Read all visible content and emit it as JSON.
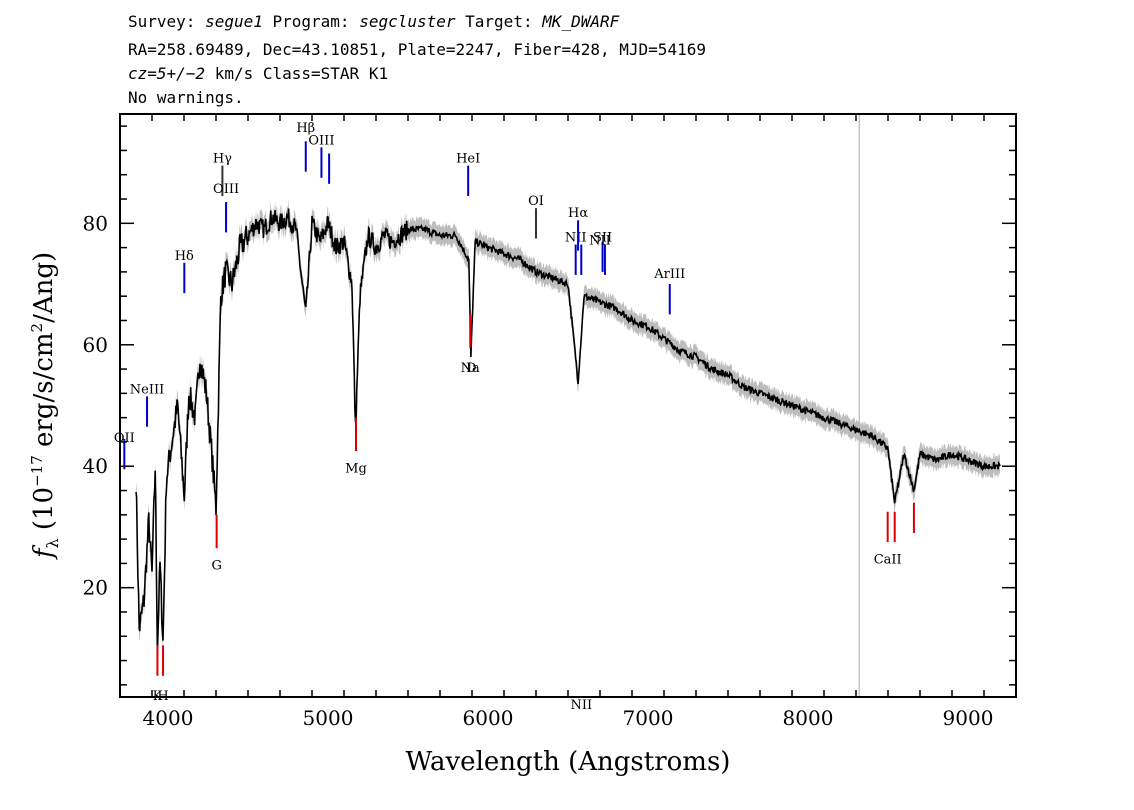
{
  "header": {
    "l1_survey_label": "Survey: ",
    "l1_survey": "segue1",
    "l1_program_label": " Program: ",
    "l1_program": "segcluster",
    "l1_target_label": " Target: ",
    "l1_target": "MK_DWARF",
    "l2": "RA=258.69489, Dec=43.10851, Plate=2247, Fiber=428, MJD=54169",
    "l3_cz": "cz=5+/−2",
    "l3_rest": " km/s Class=STAR K1",
    "l4": "No warnings."
  },
  "chart_data": {
    "type": "line",
    "xlabel": "Wavelength (Angstroms)",
    "ylabel_main": "f",
    "ylabel_sub": "λ",
    "ylabel_rest1": " (10",
    "ylabel_exp": "−17",
    "ylabel_rest2": " erg/s/cm",
    "ylabel_exp2": "2",
    "ylabel_rest3": "/Ang)",
    "xlim": [
      3700,
      9300
    ],
    "ylim": [
      2,
      98
    ],
    "x_ticks": [
      4000,
      5000,
      6000,
      7000,
      8000,
      9000
    ],
    "x_tick_labels": [
      "4000",
      "5000",
      "6000",
      "7000",
      "8000",
      "9000"
    ],
    "y_ticks": [
      20,
      40,
      60,
      80
    ],
    "y_tick_labels": [
      "20",
      "40",
      "60",
      "80"
    ],
    "colors": {
      "flux": "#000000",
      "error": "#bdbdbd",
      "emission": "#0000cc",
      "absorption": "#dd0000",
      "marker": "#aaaaaa"
    },
    "vertical_marker_x": 8320,
    "spectrum": [
      [
        3800,
        38
      ],
      [
        3820,
        13
      ],
      [
        3850,
        18
      ],
      [
        3880,
        31
      ],
      [
        3900,
        22
      ],
      [
        3920,
        40
      ],
      [
        3934,
        10
      ],
      [
        3950,
        24
      ],
      [
        3969,
        11
      ],
      [
        3990,
        38
      ],
      [
        4030,
        45
      ],
      [
        4060,
        50
      ],
      [
        4102,
        35
      ],
      [
        4130,
        52
      ],
      [
        4170,
        48
      ],
      [
        4200,
        58
      ],
      [
        4240,
        52
      ],
      [
        4280,
        40
      ],
      [
        4300,
        33
      ],
      [
        4330,
        68
      ],
      [
        4360,
        72
      ],
      [
        4400,
        70
      ],
      [
        4450,
        76
      ],
      [
        4500,
        78
      ],
      [
        4550,
        80
      ],
      [
        4600,
        79
      ],
      [
        4650,
        81
      ],
      [
        4700,
        80
      ],
      [
        4750,
        81
      ],
      [
        4800,
        79
      ],
      [
        4861,
        65
      ],
      [
        4900,
        80
      ],
      [
        4950,
        77
      ],
      [
        5000,
        80
      ],
      [
        5050,
        76
      ],
      [
        5100,
        77
      ],
      [
        5150,
        70
      ],
      [
        5172,
        46
      ],
      [
        5200,
        68
      ],
      [
        5250,
        78
      ],
      [
        5300,
        76
      ],
      [
        5350,
        78
      ],
      [
        5400,
        77
      ],
      [
        5500,
        79
      ],
      [
        5600,
        79
      ],
      [
        5700,
        78
      ],
      [
        5800,
        78
      ],
      [
        5880,
        74
      ],
      [
        5893,
        58
      ],
      [
        5920,
        77
      ],
      [
        6000,
        76
      ],
      [
        6100,
        75
      ],
      [
        6200,
        74
      ],
      [
        6300,
        72
      ],
      [
        6400,
        71
      ],
      [
        6500,
        70
      ],
      [
        6563,
        54
      ],
      [
        6600,
        68
      ],
      [
        6700,
        67
      ],
      [
        6800,
        66
      ],
      [
        6900,
        64
      ],
      [
        7000,
        63
      ],
      [
        7100,
        61
      ],
      [
        7200,
        59
      ],
      [
        7300,
        58
      ],
      [
        7400,
        56
      ],
      [
        7500,
        55
      ],
      [
        7600,
        53
      ],
      [
        7700,
        52
      ],
      [
        7800,
        51
      ],
      [
        7900,
        50
      ],
      [
        8000,
        49
      ],
      [
        8100,
        48
      ],
      [
        8200,
        47
      ],
      [
        8300,
        46
      ],
      [
        8400,
        45
      ],
      [
        8498,
        43
      ],
      [
        8542,
        34
      ],
      [
        8600,
        42
      ],
      [
        8662,
        36
      ],
      [
        8700,
        42
      ],
      [
        8800,
        41
      ],
      [
        8900,
        42
      ],
      [
        9000,
        41
      ],
      [
        9100,
        40
      ],
      [
        9200,
        40
      ]
    ],
    "emission_lines": [
      {
        "label": "OII",
        "x": 3727,
        "y_label": 44,
        "y1": 39.5,
        "y2": 44.5,
        "color": "#0000cc"
      },
      {
        "label": "NeIII",
        "x": 3869,
        "y_label": 52,
        "y1": 46.5,
        "y2": 51.5,
        "color": "#0000cc"
      },
      {
        "label": "Hδ",
        "x": 4102,
        "y_label": 74,
        "y1": 68.5,
        "y2": 73.5,
        "color": "#0000cc"
      },
      {
        "label": "Hγ",
        "x": 4340,
        "y_label": 90,
        "y1": 84.5,
        "y2": 89.5,
        "color": "#333333"
      },
      {
        "label": "OIII",
        "x": 4363,
        "y_label": 85,
        "y1": 78.5,
        "y2": 83.5,
        "color": "#0000cc"
      },
      {
        "label": "Hβ",
        "x": 4861,
        "y_label": 95,
        "y1": 88.5,
        "y2": 93.5,
        "color": "#0000cc"
      },
      {
        "label": "OIII",
        "x": 4959,
        "y_label": 93,
        "y1": 87.5,
        "y2": 92.5,
        "color": "#0000cc"
      },
      {
        "label": "",
        "x": 5007,
        "y_label": 0,
        "y1": 86.5,
        "y2": 91.5,
        "color": "#0000cc"
      },
      {
        "label": "HeI",
        "x": 5876,
        "y_label": 90,
        "y1": 84.5,
        "y2": 89.5,
        "color": "#0000cc"
      },
      {
        "label": "OI",
        "x": 6300,
        "y_label": 83,
        "y1": 77.5,
        "y2": 82.5,
        "color": "#333333"
      },
      {
        "label": "NII",
        "x": 6548,
        "y_label": 77,
        "y1": 71.5,
        "y2": 76.5,
        "color": "#0000cc"
      },
      {
        "label": "Hα",
        "x": 6563,
        "y_label": 81,
        "y1": 75.5,
        "y2": 80.5,
        "color": "#0000cc"
      },
      {
        "label": "NII",
        "x": 6583,
        "y_label": 0,
        "y1": 71.5,
        "y2": 76.5,
        "color": "#0000cc"
      },
      {
        "label": "SII",
        "x": 6716,
        "y_label": 77,
        "y1": 72,
        "y2": 77,
        "color": "#0000cc"
      },
      {
        "label": "NII",
        "x": 6700,
        "y_label": 76.5,
        "y1": 0,
        "y2": 0,
        "color": "#0000cc"
      },
      {
        "label": "",
        "x": 6731,
        "y_label": 0,
        "y1": 71.5,
        "y2": 76.5,
        "color": "#0000cc"
      },
      {
        "label": "ArIII",
        "x": 7136,
        "y_label": 71,
        "y1": 65,
        "y2": 70,
        "color": "#0000cc"
      }
    ],
    "absorption_lines": [
      {
        "label": "K",
        "x": 3934,
        "y_label": 1.5,
        "y1": 5.5,
        "y2": 10.5,
        "color": "#dd0000"
      },
      {
        "label": "H",
        "x": 3969,
        "y_label": 1.5,
        "y1": 5.5,
        "y2": 10.5,
        "color": "#dd0000"
      },
      {
        "label": "G",
        "x": 4304,
        "y_label": 23,
        "y1": 26.5,
        "y2": 32,
        "color": "#dd0000"
      },
      {
        "label": "Mg",
        "x": 5175,
        "y_label": 39,
        "y1": 42.5,
        "y2": 48,
        "color": "#dd0000"
      },
      {
        "label": "Na",
        "x": 5889,
        "y_label": 55.5,
        "y1": 59.5,
        "y2": 65,
        "color": "#dd0000"
      },
      {
        "label": "D",
        "x": 5896,
        "y_label": 55.5,
        "y1": 0,
        "y2": 0,
        "color": "#dd0000"
      },
      {
        "label": "CaII",
        "x": 8498,
        "y_label": 24,
        "y1": 27.5,
        "y2": 32.5,
        "color": "#dd0000"
      },
      {
        "label": "",
        "x": 8542,
        "y_label": 0,
        "y1": 27.5,
        "y2": 32.5,
        "color": "#dd0000"
      },
      {
        "label": "",
        "x": 8662,
        "y_label": 0,
        "y1": 29,
        "y2": 34,
        "color": "#dd0000"
      }
    ]
  }
}
